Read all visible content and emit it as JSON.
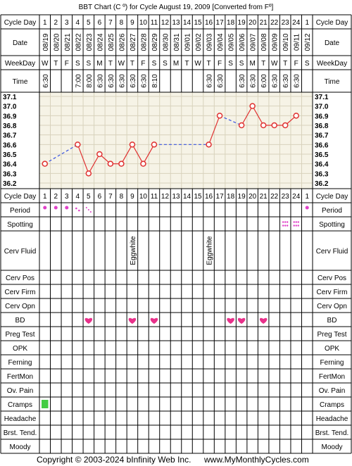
{
  "title": "BBT Chart (C º) for Cycle August 19, 2009  [Converted from Fº]",
  "footer": {
    "copyright": "Copyright © 2003-2024 bInfinity Web Inc.",
    "website": "www.MyMonthlyCycles.com"
  },
  "labels": {
    "cycle_day": "Cycle Day",
    "date": "Date",
    "weekday": "WeekDay",
    "time": "Time",
    "period": "Period",
    "spotting": "Spotting",
    "cerv_fluid": "Cerv Fluid",
    "cerv_pos": "Cerv Pos",
    "cerv_firm": "Cerv Firm",
    "cerv_opn": "Cerv Opn",
    "bd": "BD",
    "preg_test": "Preg Test",
    "opk": "OPK",
    "ferning": "Ferning",
    "fertmon": "FertMon",
    "ov_pain": "Ov. Pain",
    "cramps": "Cramps",
    "headache": "Headache",
    "brst_tend": "Brst. Tend.",
    "moody": "Moody"
  },
  "colors": {
    "grid": "#000000",
    "chart_bg": "#f6f3e6",
    "chart_grid": "#d8d2bc",
    "temp_line": "#e03030",
    "dashed_line": "#3a55e0",
    "period": "#e040c8",
    "bd_heart": "#e8308a",
    "cramps": "#44cc44"
  },
  "columns": {
    "cycle_days": [
      "1",
      "2",
      "3",
      "4",
      "5",
      "6",
      "7",
      "8",
      "9",
      "10",
      "11",
      "12",
      "13",
      "14",
      "15",
      "16",
      "17",
      "18",
      "19",
      "20",
      "21",
      "22",
      "23",
      "24",
      "1"
    ],
    "dates": [
      "08/19",
      "08/20",
      "08/21",
      "08/22",
      "08/23",
      "08/24",
      "08/25",
      "08/26",
      "08/27",
      "08/28",
      "08/29",
      "08/30",
      "08/31",
      "09/01",
      "09/02",
      "09/03",
      "09/04",
      "09/05",
      "09/06",
      "09/07",
      "09/08",
      "09/09",
      "09/10",
      "09/11",
      "09/12"
    ],
    "weekdays": [
      "W",
      "T",
      "F",
      "S",
      "S",
      "M",
      "T",
      "W",
      "T",
      "F",
      "S",
      "S",
      "M",
      "T",
      "W",
      "T",
      "F",
      "S",
      "S",
      "M",
      "T",
      "W",
      "T",
      "F",
      "S"
    ],
    "times": [
      "6:30",
      "",
      "",
      "7:00",
      "8:00",
      "6:30",
      "6:30",
      "6:30",
      "6:30",
      "6:30",
      "8:10",
      "",
      "",
      "",
      "",
      "6:30",
      "6:30",
      "",
      "6:30",
      "6:30",
      "6:00",
      "6:30",
      "6:30",
      "6:30",
      ""
    ]
  },
  "chart_data": {
    "type": "line",
    "title": "BBT Chart (C º) for Cycle August 19, 2009  [Converted from Fº]",
    "xlabel": "Cycle Day",
    "ylabel": "",
    "x": [
      "1",
      "2",
      "3",
      "4",
      "5",
      "6",
      "7",
      "8",
      "9",
      "10",
      "11",
      "12",
      "13",
      "14",
      "15",
      "16",
      "17",
      "18",
      "19",
      "20",
      "21",
      "22",
      "23",
      "24",
      "1"
    ],
    "ylim": [
      36.2,
      37.1
    ],
    "y_ticks": [
      "37.1",
      "37.0",
      "36.9",
      "36.8",
      "36.7",
      "36.6",
      "36.5",
      "36.4",
      "36.3",
      "36.2"
    ],
    "grid": true,
    "series": [
      {
        "values": [
          36.4,
          null,
          null,
          36.6,
          36.3,
          36.5,
          36.4,
          36.4,
          36.6,
          36.4,
          36.6,
          null,
          null,
          null,
          null,
          36.6,
          36.9,
          null,
          36.8,
          37.0,
          36.8,
          36.8,
          36.8,
          36.9,
          null
        ]
      }
    ]
  },
  "observations": {
    "period": [
      {
        "col": 0,
        "level": "medium"
      },
      {
        "col": 1,
        "level": "medium"
      },
      {
        "col": 2,
        "level": "medium"
      },
      {
        "col": 3,
        "level": "light"
      },
      {
        "col": 4,
        "level": "spotting"
      },
      {
        "col": 24,
        "level": "medium"
      }
    ],
    "spotting": [
      22,
      23
    ],
    "cerv_fluid": [
      {
        "col": 8,
        "text": "Eggwhite"
      },
      {
        "col": 15,
        "text": "Eggwhite"
      }
    ],
    "bd": [
      4,
      8,
      10,
      17,
      18,
      20
    ],
    "cramps": [
      0
    ]
  }
}
